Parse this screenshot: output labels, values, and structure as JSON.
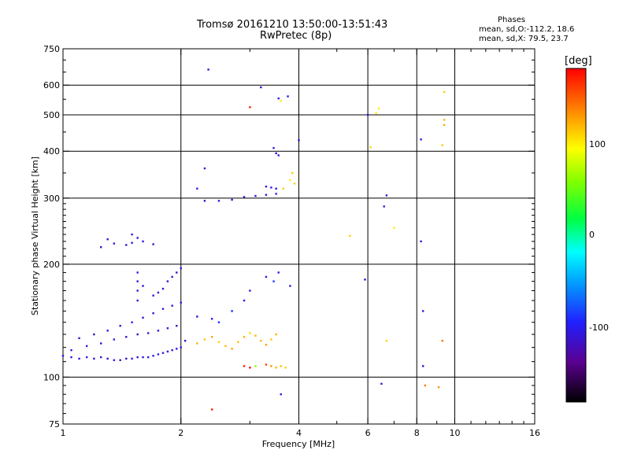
{
  "header": {
    "title_line1": "Tromsø 20161210 13:50:00-13:51:43",
    "title_line2": "RwPretec (8p)",
    "stats_title": "Phases",
    "stats_line1": "mean, sd,O:-112.2, 18.6",
    "stats_line2": "mean, sd,X:  79.5, 23.7"
  },
  "colorbar": {
    "unit": "[deg]",
    "ticks": [
      "100",
      "0",
      "-100"
    ],
    "tick_values": [
      100,
      0,
      -100
    ],
    "range": [
      -180,
      180
    ]
  },
  "chart_data": {
    "type": "scatter",
    "xlabel": "Frequency [MHz]",
    "ylabel": "Stationary phase Virtual Height [km]",
    "xscale": "log",
    "yscale": "log",
    "xlim": [
      1,
      16
    ],
    "ylim": [
      75,
      750
    ],
    "xticks": [
      1,
      2,
      4,
      6,
      8,
      10,
      16
    ],
    "xtick_labels": [
      "1",
      "2",
      "4",
      "6",
      "8",
      "10",
      "16"
    ],
    "yticks": [
      75,
      100,
      200,
      300,
      400,
      500,
      600,
      750
    ],
    "ytick_labels": [
      "75",
      "100",
      "200",
      "300",
      "400",
      "500",
      "600",
      "750"
    ],
    "grid": true,
    "color_variable": "Phase [deg]",
    "series": [
      {
        "values": [
          [
            1.0,
            114,
            -100
          ],
          [
            1.05,
            113,
            -110
          ],
          [
            1.1,
            112,
            -105
          ],
          [
            1.15,
            113,
            -100
          ],
          [
            1.2,
            112,
            -110
          ],
          [
            1.25,
            113,
            -120
          ],
          [
            1.3,
            112,
            -110
          ],
          [
            1.35,
            111,
            -100
          ],
          [
            1.4,
            111,
            -110
          ],
          [
            1.45,
            112,
            -115
          ],
          [
            1.5,
            112,
            -105
          ],
          [
            1.55,
            113,
            -110
          ],
          [
            1.6,
            113,
            -110
          ],
          [
            1.65,
            113,
            -100
          ],
          [
            1.7,
            114,
            -110
          ],
          [
            1.75,
            115,
            -100
          ],
          [
            1.8,
            116,
            -110
          ],
          [
            1.85,
            117,
            -115
          ],
          [
            1.9,
            118,
            -105
          ],
          [
            1.95,
            119,
            -110
          ],
          [
            2.0,
            120,
            -100
          ],
          [
            2.05,
            125,
            -110
          ],
          [
            1.05,
            118,
            -110
          ],
          [
            1.15,
            121,
            -105
          ],
          [
            1.25,
            123,
            -110
          ],
          [
            1.35,
            126,
            -100
          ],
          [
            1.45,
            128,
            -115
          ],
          [
            1.55,
            130,
            -110
          ],
          [
            1.65,
            131,
            -105
          ],
          [
            1.75,
            133,
            -110
          ],
          [
            1.85,
            135,
            -100
          ],
          [
            1.95,
            137,
            -110
          ],
          [
            1.1,
            127,
            -110
          ],
          [
            1.2,
            130,
            -115
          ],
          [
            1.3,
            133,
            -105
          ],
          [
            1.4,
            137,
            -110
          ],
          [
            1.5,
            140,
            -100
          ],
          [
            1.6,
            144,
            -110
          ],
          [
            1.7,
            148,
            -115
          ],
          [
            1.8,
            152,
            -105
          ],
          [
            1.9,
            155,
            -110
          ],
          [
            2.0,
            158,
            -110
          ],
          [
            1.3,
            233,
            -110
          ],
          [
            1.35,
            227,
            -105
          ],
          [
            1.45,
            225,
            -110
          ],
          [
            1.5,
            228,
            -105
          ],
          [
            1.55,
            235,
            -110
          ],
          [
            1.6,
            230,
            -100
          ],
          [
            1.7,
            226,
            -115
          ],
          [
            1.25,
            222,
            -110
          ],
          [
            1.5,
            240,
            -110
          ],
          [
            1.55,
            160,
            -110
          ],
          [
            1.55,
            170,
            -105
          ],
          [
            1.55,
            180,
            -110
          ],
          [
            1.55,
            190,
            -100
          ],
          [
            1.6,
            175,
            -110
          ],
          [
            1.7,
            165,
            -105
          ],
          [
            1.75,
            168,
            -110
          ],
          [
            1.8,
            172,
            -110
          ],
          [
            1.85,
            180,
            -105
          ],
          [
            1.9,
            185,
            -110
          ],
          [
            1.95,
            190,
            -110
          ],
          [
            2.0,
            195,
            -100
          ],
          [
            2.3,
            295,
            -115
          ],
          [
            2.5,
            295,
            -105
          ],
          [
            2.7,
            297,
            -110
          ],
          [
            2.9,
            302,
            -110
          ],
          [
            3.1,
            304,
            -105
          ],
          [
            3.3,
            306,
            -110
          ],
          [
            3.5,
            308,
            -100
          ],
          [
            3.3,
            322,
            -110
          ],
          [
            3.4,
            320,
            -105
          ],
          [
            3.5,
            318,
            -110
          ],
          [
            3.45,
            408,
            -110
          ],
          [
            3.5,
            395,
            -105
          ],
          [
            3.55,
            390,
            -110
          ],
          [
            2.2,
            145,
            -110
          ],
          [
            2.4,
            143,
            -100
          ],
          [
            2.5,
            140,
            -90
          ],
          [
            2.7,
            150,
            -90
          ],
          [
            2.9,
            160,
            -100
          ],
          [
            3.0,
            170,
            -100
          ],
          [
            3.3,
            185,
            -110
          ],
          [
            3.45,
            180,
            -85
          ],
          [
            3.55,
            190,
            -100
          ],
          [
            3.8,
            175,
            -110
          ],
          [
            2.2,
            318,
            -100
          ],
          [
            3.2,
            592,
            -110
          ],
          [
            3.55,
            553,
            -100
          ],
          [
            3.75,
            560,
            -100
          ],
          [
            4.0,
            428,
            -110
          ],
          [
            2.35,
            660,
            -110
          ],
          [
            2.3,
            360,
            -110
          ],
          [
            6.0,
            500,
            -100
          ],
          [
            6.6,
            285,
            -110
          ],
          [
            6.7,
            305,
            -110
          ],
          [
            5.9,
            182,
            -110
          ],
          [
            8.2,
            430,
            -110
          ],
          [
            8.2,
            230,
            -110
          ],
          [
            8.3,
            150,
            -110
          ],
          [
            8.3,
            107,
            -110
          ],
          [
            6.5,
            96,
            -110
          ],
          [
            3.6,
            90,
            -110
          ]
        ]
      },
      {
        "values": [
          [
            2.2,
            123,
            120
          ],
          [
            2.3,
            126,
            115
          ],
          [
            2.4,
            128,
            125
          ],
          [
            2.5,
            124,
            110
          ],
          [
            2.6,
            121,
            118
          ],
          [
            2.7,
            119,
            125
          ],
          [
            2.8,
            124,
            115
          ],
          [
            2.9,
            128,
            120
          ],
          [
            3.0,
            131,
            110
          ],
          [
            3.1,
            129,
            118
          ],
          [
            3.2,
            125,
            120
          ],
          [
            3.3,
            122,
            125
          ],
          [
            3.4,
            126,
            115
          ],
          [
            3.5,
            130,
            120
          ],
          [
            3.3,
            108,
            160
          ],
          [
            3.4,
            107,
            130
          ],
          [
            3.5,
            106,
            120
          ],
          [
            3.6,
            107,
            115
          ],
          [
            3.7,
            106,
            110
          ],
          [
            2.9,
            107,
            170
          ],
          [
            3.0,
            106,
            180
          ],
          [
            3.1,
            107,
            60
          ],
          [
            3.8,
            335,
            100
          ],
          [
            3.9,
            328,
            110
          ],
          [
            3.65,
            318,
            110
          ],
          [
            3.85,
            350,
            110
          ],
          [
            3.6,
            545,
            100
          ],
          [
            5.4,
            238,
            110
          ],
          [
            6.1,
            410,
            110
          ],
          [
            6.3,
            505,
            100
          ],
          [
            6.4,
            520,
            100
          ],
          [
            6.7,
            125,
            110
          ],
          [
            7.0,
            250,
            100
          ],
          [
            8.4,
            95,
            140
          ],
          [
            9.1,
            94,
            130
          ],
          [
            9.4,
            575,
            110
          ],
          [
            9.4,
            485,
            120
          ],
          [
            9.4,
            470,
            120
          ],
          [
            9.3,
            415,
            110
          ],
          [
            9.3,
            125,
            140
          ],
          [
            2.4,
            82,
            170
          ],
          [
            3.0,
            524,
            170
          ]
        ]
      }
    ]
  }
}
